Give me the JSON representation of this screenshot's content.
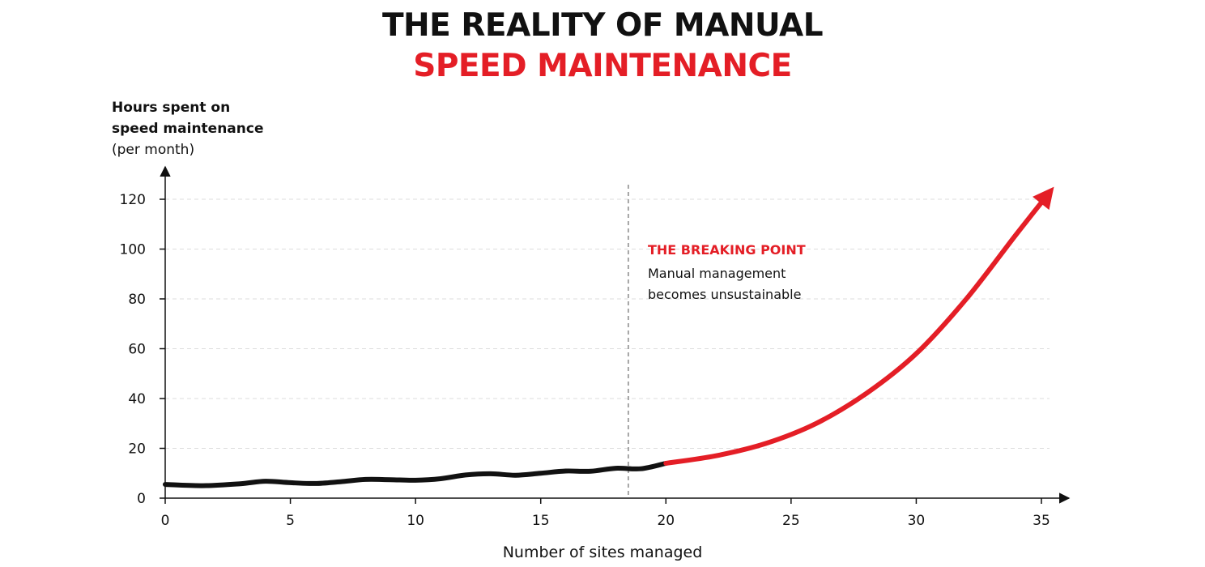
{
  "title": {
    "line1": "THE REALITY OF MANUAL",
    "line2": "SPEED MAINTENANCE"
  },
  "colors": {
    "accent": "#e41e26",
    "text": "#111111",
    "grid": "#dddddd"
  },
  "chart_data": {
    "type": "line",
    "title": "THE REALITY OF MANUAL SPEED MAINTENANCE",
    "ylabel_lines": [
      "Hours spent on",
      "speed maintenance",
      "(per month)"
    ],
    "xlabel": "Number of sites managed",
    "xlim": [
      0,
      38
    ],
    "ylim": [
      0,
      122
    ],
    "xticks": [
      0,
      5,
      10,
      15,
      20,
      25,
      30,
      35
    ],
    "yticks": [
      0,
      20,
      40,
      60,
      80,
      100,
      120
    ],
    "grid": "horizontal dashed",
    "series": [
      {
        "color": "#111111",
        "x": [
          0,
          1.5,
          3,
          4,
          5,
          6,
          7,
          8,
          9,
          10,
          11,
          12,
          13,
          14,
          15,
          16,
          17,
          18,
          19,
          20
        ],
        "y": [
          5.5,
          5,
          5.8,
          6.8,
          6.2,
          5.9,
          6.6,
          7.5,
          7.4,
          7.2,
          7.8,
          9.3,
          9.8,
          9.2,
          10,
          10.9,
          10.8,
          12,
          11.8,
          14
        ]
      },
      {
        "color": "#e41e26",
        "x": [
          20,
          22,
          24,
          26,
          28,
          30,
          32,
          34,
          35.5
        ],
        "y": [
          14,
          17,
          22,
          30,
          42,
          58,
          80,
          106,
          125
        ]
      }
    ],
    "annotation": {
      "x": 18.5,
      "title": "THE BREAKING POINT",
      "lines": [
        "Manual management",
        "becomes unsustainable"
      ]
    }
  }
}
